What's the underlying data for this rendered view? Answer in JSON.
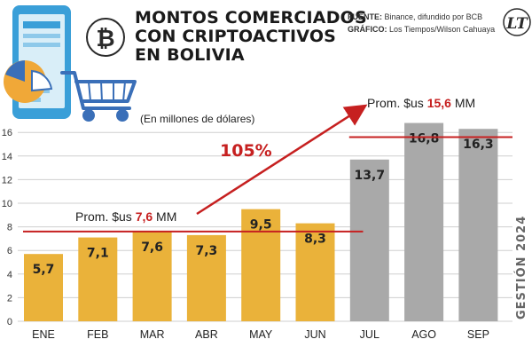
{
  "header": {
    "title_lines": [
      "MONTOS COMERCIADOS",
      "CON CRIPTOACTIVOS",
      "EN BOLIVIA"
    ],
    "source_label": "FUENTE:",
    "source_value": "Binance, difundido por BCB",
    "graphic_label": "GRÁFICO:",
    "graphic_value": "Los Tiempos/Wilson Cahuaya",
    "logo_text": "LT"
  },
  "colors": {
    "bar_first_half": "#eab23a",
    "bar_second_half": "#a9a9a9",
    "average_line": "#c62020",
    "accent": "#c62020"
  },
  "icons": [
    "phone-icon",
    "pie-chart-icon",
    "bitcoin-icon",
    "shopping-cart-icon"
  ],
  "chart_data": {
    "type": "bar",
    "categories": [
      "ENE",
      "FEB",
      "MAR",
      "ABR",
      "MAY",
      "JUN",
      "JUL",
      "AGO",
      "SEP"
    ],
    "values": [
      5.7,
      7.1,
      7.6,
      7.3,
      9.5,
      8.3,
      13.7,
      16.8,
      16.3
    ],
    "value_labels": [
      "5,7",
      "7,1",
      "7,6",
      "7,3",
      "9,5",
      "8,3",
      "13,7",
      "16,8",
      "16,3"
    ],
    "ylabel": "(En millones de dólares)",
    "ylim": [
      0,
      17
    ],
    "yticks": [
      0,
      2,
      4,
      6,
      8,
      10,
      12,
      14,
      16
    ],
    "grid": true,
    "side_label": "GESTIÓN 2024",
    "averages": [
      {
        "from": "ENE",
        "to": "JUN",
        "value": 7.6,
        "label_prefix": "Prom. $us ",
        "label_value": "7,6",
        "label_suffix": " MM"
      },
      {
        "from": "JUL",
        "to": "SEP",
        "value": 15.6,
        "label_prefix": "Prom. $us ",
        "label_value": "15,6",
        "label_suffix": " MM"
      }
    ],
    "growth_annotation": "105%"
  }
}
